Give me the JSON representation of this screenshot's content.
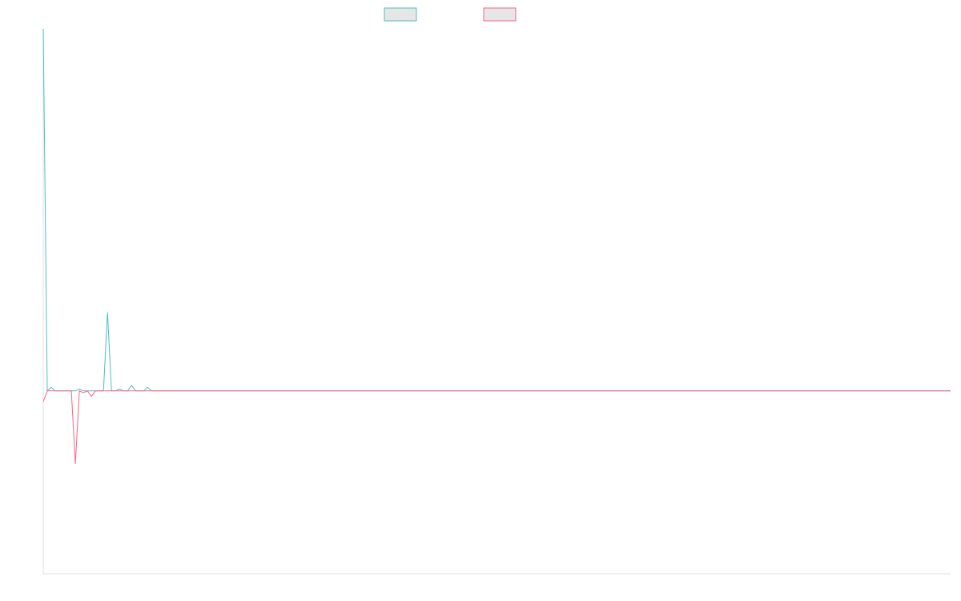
{
  "chart_data": {
    "type": "line",
    "title": "",
    "xlabel": "",
    "ylabel": "",
    "xlim": [
      0,
      226
    ],
    "ylim": [
      -100,
      198
    ],
    "grid": false,
    "legend_placement": "top-center",
    "series": [
      {
        "color": "#4bc0c0",
        "fill": "#e6e6e6",
        "values": [
          198,
          0,
          2,
          0,
          0,
          0,
          0,
          0,
          0,
          1,
          0,
          0,
          0,
          0,
          0,
          0,
          43,
          0,
          0,
          1,
          0,
          0,
          3,
          0,
          0,
          0,
          2,
          0,
          0,
          0,
          0,
          0,
          0,
          0,
          0,
          0,
          0,
          0,
          0,
          0,
          0,
          0,
          0,
          0,
          0,
          0,
          0,
          0,
          0,
          0,
          0,
          0,
          0,
          0,
          0,
          0,
          0,
          0,
          0,
          0,
          0,
          0,
          0,
          0,
          0,
          0,
          0,
          0,
          0,
          0,
          0,
          0,
          0,
          0,
          0,
          0,
          0,
          0,
          0,
          0,
          0,
          0,
          0,
          0,
          0,
          0,
          0,
          0,
          0,
          0,
          0,
          0,
          0,
          0,
          0,
          0,
          0,
          0,
          0,
          0,
          0,
          0,
          0,
          0,
          0,
          0,
          0,
          0,
          0,
          0,
          0,
          0,
          0,
          0,
          0,
          0,
          0,
          0,
          0,
          0,
          0,
          0,
          0,
          0,
          0,
          0,
          0,
          0,
          0,
          0,
          0,
          0,
          0,
          0,
          0,
          0,
          0,
          0,
          0,
          0,
          0,
          0,
          0,
          0,
          0,
          0,
          0,
          0,
          0,
          0,
          0,
          0,
          0,
          0,
          0,
          0,
          0,
          0,
          0,
          0,
          0,
          0,
          0,
          0,
          0,
          0,
          0,
          0,
          0,
          0,
          0,
          0,
          0,
          0,
          0,
          0,
          0,
          0,
          0,
          0,
          0,
          0,
          0,
          0,
          0,
          0,
          0,
          0,
          0,
          0,
          0,
          0,
          0,
          0,
          0,
          0,
          0,
          0,
          0,
          0,
          0,
          0,
          0,
          0,
          0,
          0,
          0,
          0,
          0,
          0,
          0,
          0,
          0,
          0,
          0,
          0,
          0,
          0,
          0,
          0,
          0,
          0,
          0,
          0,
          0,
          0,
          0
        ]
      },
      {
        "color": "#ff6384",
        "fill": "#e6e6e6",
        "values": [
          -6,
          0,
          0,
          0,
          0,
          0,
          0,
          0,
          -40,
          0,
          -1,
          0,
          -3,
          0,
          0,
          0,
          0,
          0,
          0,
          0,
          0,
          0,
          0,
          0,
          0,
          0,
          0,
          0,
          0,
          0,
          0,
          0,
          0,
          0,
          0,
          0,
          0,
          0,
          0,
          0,
          0,
          0,
          0,
          0,
          0,
          0,
          0,
          0,
          0,
          0,
          0,
          0,
          0,
          0,
          0,
          0,
          0,
          0,
          0,
          0,
          0,
          0,
          0,
          0,
          0,
          0,
          0,
          0,
          0,
          0,
          0,
          0,
          0,
          0,
          0,
          0,
          0,
          0,
          0,
          0,
          0,
          0,
          0,
          0,
          0,
          0,
          0,
          0,
          0,
          0,
          0,
          0,
          0,
          0,
          0,
          0,
          0,
          0,
          0,
          0,
          0,
          0,
          0,
          0,
          0,
          0,
          0,
          0,
          0,
          0,
          0,
          0,
          0,
          0,
          0,
          0,
          0,
          0,
          0,
          0,
          0,
          0,
          0,
          0,
          0,
          0,
          0,
          0,
          0,
          0,
          0,
          0,
          0,
          0,
          0,
          0,
          0,
          0,
          0,
          0,
          0,
          0,
          0,
          0,
          0,
          0,
          0,
          0,
          0,
          0,
          0,
          0,
          0,
          0,
          0,
          0,
          0,
          0,
          0,
          0,
          0,
          0,
          0,
          0,
          0,
          0,
          0,
          0,
          0,
          0,
          0,
          0,
          0,
          0,
          0,
          0,
          0,
          0,
          0,
          0,
          0,
          0,
          0,
          0,
          0,
          0,
          0,
          0,
          0,
          0,
          0,
          0,
          0,
          0,
          0,
          0,
          0,
          0,
          0,
          0,
          0,
          0,
          0,
          0,
          0,
          0,
          0,
          0,
          0,
          0,
          0,
          0,
          0,
          0,
          0,
          0,
          0,
          0,
          0,
          0,
          0,
          0,
          0,
          0,
          0,
          0,
          0
        ]
      }
    ]
  }
}
